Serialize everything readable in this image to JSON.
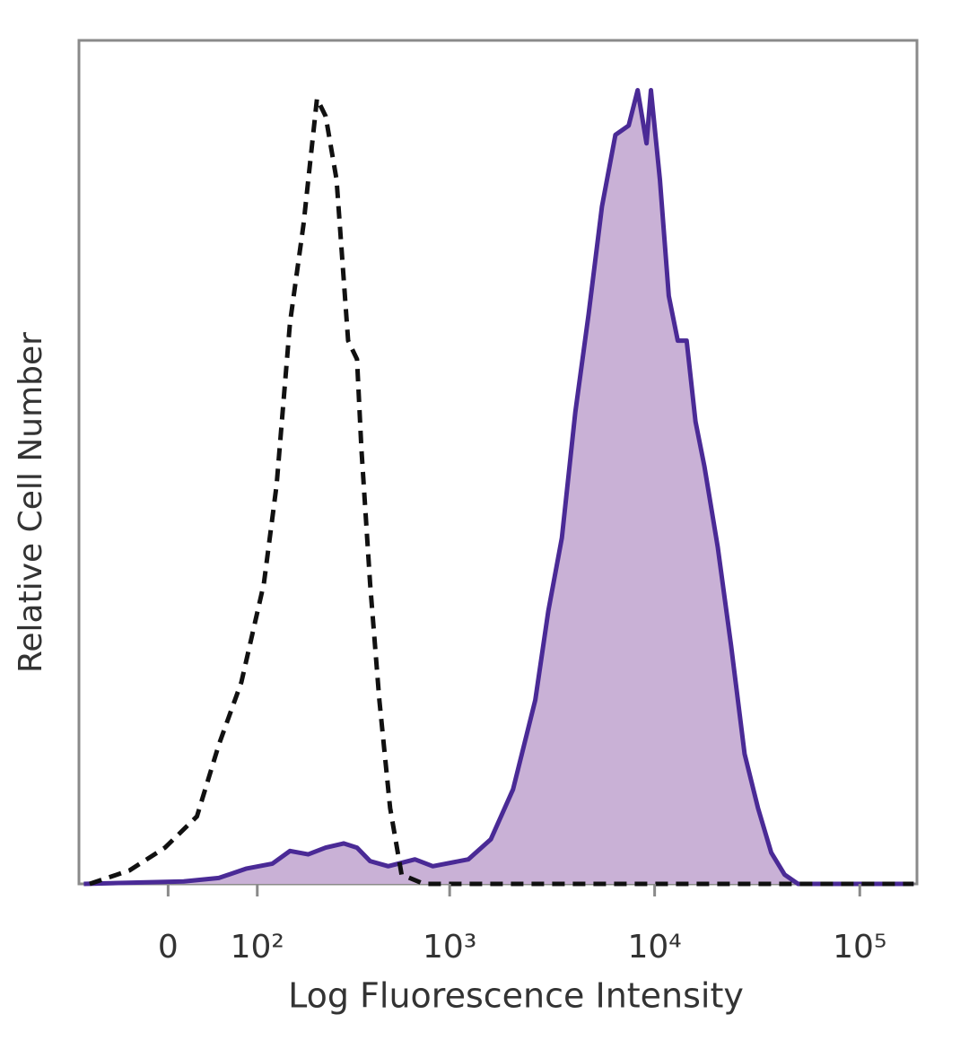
{
  "chart_data": {
    "type": "histogram-overlay",
    "xlabel": "Log Fluorescence Intensity",
    "ylabel": "Relative Cell Number",
    "xscale": "biexponential",
    "xlim": [
      -100,
      190000
    ],
    "ylim": [
      0,
      100
    ],
    "xticks": [
      0,
      {
        "value": 100,
        "label": "10²"
      },
      {
        "value": 1000,
        "label": "10³"
      },
      {
        "value": 10000,
        "label": "10⁴"
      },
      {
        "value": 100000,
        "label": "10⁵"
      }
    ],
    "series": [
      {
        "color": "#4a2a96",
        "fill": "#c9b1d6",
        "x": [
          -93,
          15,
          51,
          84,
          124,
          156,
          196,
          242,
          299,
          349,
          406,
          499,
          676,
          827,
          1233,
          1590,
          2040,
          2618,
          3035,
          3528,
          4106,
          4769,
          5534,
          6435,
          7472,
          8262,
          9129,
          9597,
          10608,
          11722,
          12960,
          14320,
          15830,
          17490,
          20320,
          23610,
          27440,
          31880,
          37030,
          43030,
          49980,
          183000
        ],
        "values": [
          0,
          0.3,
          0.7,
          1.8,
          2.4,
          3.9,
          3.5,
          4.3,
          4.8,
          4.3,
          2.7,
          2.1,
          2.9,
          2.1,
          2.9,
          5.3,
          11.2,
          21.8,
          32.4,
          41.0,
          55.9,
          67.6,
          80.3,
          88.8,
          89.9,
          94.1,
          87.8,
          94.1,
          83.5,
          69.7,
          64.4,
          64.4,
          54.8,
          49.5,
          39.9,
          28.2,
          15.4,
          9.0,
          3.7,
          1.1,
          0,
          0
        ]
      },
      {
        "color": "#111111",
        "dashed": true,
        "x": [
          -85,
          -38,
          -3,
          28,
          51,
          78,
          110,
          131,
          156,
          185,
          218,
          242,
          275,
          315,
          349,
          367,
          406,
          451,
          510,
          581,
          748,
          183000
        ],
        "values": [
          0,
          1.6,
          4.3,
          8.0,
          16.5,
          23.9,
          35.6,
          47.3,
          66.5,
          78.2,
          93.1,
          91.0,
          83.5,
          64.4,
          62.2,
          51.6,
          35.6,
          21.8,
          9.0,
          1.1,
          0,
          0
        ]
      }
    ]
  }
}
